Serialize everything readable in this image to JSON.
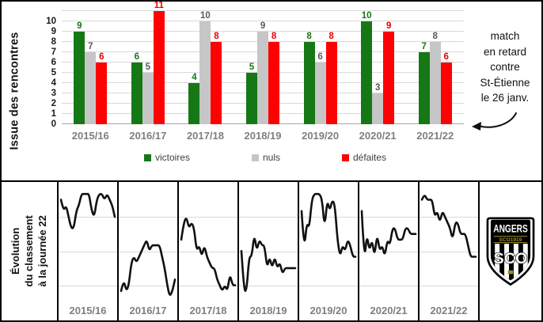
{
  "chart_data": [
    {
      "type": "bar",
      "title": "",
      "ylabel": "Issue des rencontres",
      "xlabel": "",
      "ylim": [
        0,
        11
      ],
      "yticks": [
        0,
        1,
        2,
        3,
        4,
        5,
        6,
        7,
        8,
        9,
        10
      ],
      "grid": true,
      "legend_position": "bottom",
      "categories": [
        "2015/16",
        "2016/17",
        "2017/18",
        "2018/19",
        "2019/20",
        "2020/21",
        "2021/22"
      ],
      "series": [
        {
          "name": "victoires",
          "color": "#157815",
          "label_color": "#157815",
          "values": [
            9,
            6,
            4,
            5,
            8,
            10,
            7
          ]
        },
        {
          "name": "nuls",
          "color": "#c6c6c6",
          "label_color": "#595959",
          "values": [
            7,
            5,
            10,
            9,
            6,
            3,
            8
          ]
        },
        {
          "name": "défaites",
          "color": "#fd0202",
          "label_color": "#e60000",
          "values": [
            6,
            11,
            8,
            8,
            8,
            9,
            6
          ]
        }
      ]
    },
    {
      "type": "line",
      "title": "Évolution du classement à la journée 22",
      "inverted_y": true,
      "rank_range": [
        1,
        20
      ],
      "x_range": [
        1,
        22
      ],
      "line_color": "#111111",
      "panels": [
        {
          "season": "2015/16",
          "ranks": [
            3,
            5,
            4,
            6,
            8,
            8,
            5,
            4,
            2,
            2,
            2,
            2,
            5,
            6,
            3,
            2,
            2,
            3,
            2,
            3,
            4,
            6
          ]
        },
        {
          "season": "2016/17",
          "ranks": [
            19,
            17,
            19,
            18,
            14,
            13,
            14,
            13,
            12,
            11,
            10,
            12,
            11,
            11,
            11,
            11,
            13,
            15,
            18,
            20,
            19,
            17
          ]
        },
        {
          "season": "2017/18",
          "ranks": [
            10,
            7,
            6,
            8,
            7,
            8,
            12,
            11,
            13,
            11,
            13,
            14,
            15,
            15,
            17,
            18,
            19,
            18,
            19,
            16,
            18,
            18
          ]
        },
        {
          "season": "2018/19",
          "ranks": [
            12,
            19,
            19,
            13,
            13,
            9,
            12,
            10,
            11,
            11,
            15,
            13,
            15,
            13,
            15,
            14,
            16,
            15,
            15,
            15,
            15,
            15
          ]
        },
        {
          "season": "2019/20",
          "ranks": [
            5,
            12,
            7,
            8,
            3,
            2,
            2,
            2,
            3,
            8,
            3,
            5,
            3,
            4,
            10,
            13,
            11,
            12,
            10,
            11,
            13,
            13
          ]
        },
        {
          "season": "2020/21",
          "ranks": [
            5,
            14,
            9,
            12,
            10,
            13,
            9,
            12,
            11,
            13,
            10,
            11,
            8,
            8,
            10,
            10,
            10,
            8,
            8,
            9,
            9,
            9
          ]
        },
        {
          "season": "2021/22",
          "ranks": [
            3,
            2,
            3,
            3,
            3,
            6,
            5,
            7,
            5,
            6,
            7,
            8,
            10,
            7,
            7,
            9,
            9,
            9,
            11,
            13,
            13,
            13
          ]
        }
      ]
    }
  ],
  "annotation": {
    "lines": [
      "match",
      "en retard",
      "contre",
      "St-Étienne",
      "le 26 janv."
    ],
    "arrow_target": "2021/22"
  },
  "row_title_lines": [
    "Évolution",
    "du classement",
    "à la journée 22"
  ],
  "logo": {
    "club": "ANGERS",
    "band": "SCO1919",
    "monogram": "SCO"
  },
  "colors": {
    "grid": "#d9d9d9",
    "axis": "#a6a6a6",
    "category_label": "#7f7f7f",
    "legend_text": "#404040"
  }
}
